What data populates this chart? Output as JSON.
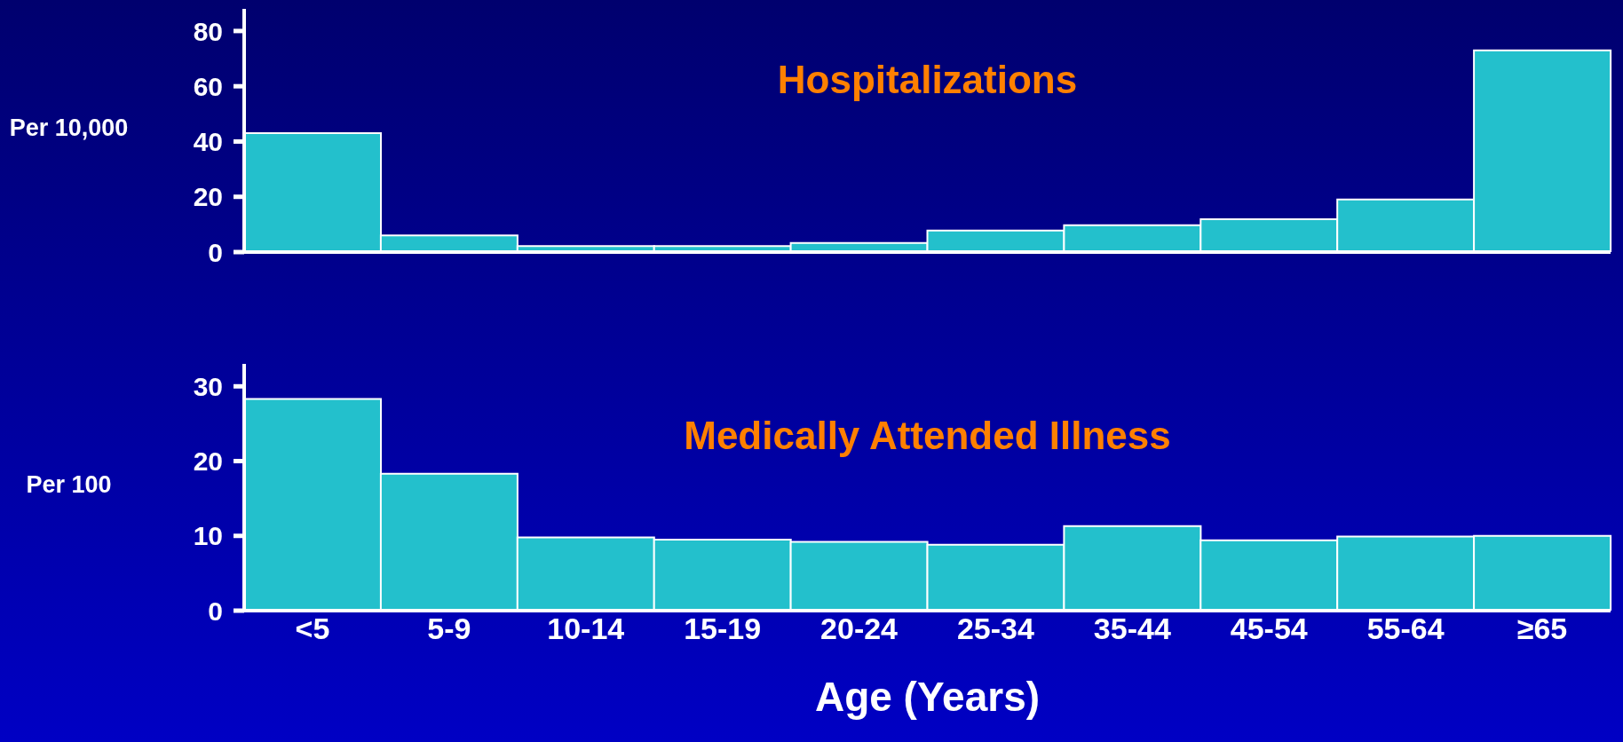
{
  "chart_data": [
    {
      "type": "bar",
      "title": "Hospitalizations",
      "ylabel": "Per 10,000",
      "categories": [
        null,
        null,
        null,
        null,
        null,
        null,
        null,
        null,
        null,
        null
      ],
      "series": [
        {
          "color": "#23c0cc",
          "values": [
            43,
            6,
            2.2,
            2.2,
            3.3,
            7.8,
            9.7,
            11.9,
            19,
            73
          ]
        }
      ],
      "ylim": [
        0,
        88
      ],
      "yticks": [
        0,
        20,
        40,
        60,
        80
      ],
      "grid": false,
      "legend": false,
      "tick_labels": "y"
    },
    {
      "type": "bar",
      "title": "Medically Attended Illness",
      "ylabel": "Per 100",
      "xlabel": "Age (Years)",
      "categories": [
        "<5",
        "5-9",
        "10-14",
        "15-19",
        "20-24",
        "25-34",
        "35-44",
        "45-54",
        "55-64",
        "≥65"
      ],
      "series": [
        {
          "color": "#23c0cc",
          "values": [
            28.3,
            18.3,
            9.8,
            9.5,
            9.2,
            8.8,
            11.3,
            9.4,
            9.9,
            10.0
          ]
        }
      ],
      "ylim": [
        0,
        33
      ],
      "yticks": [
        0,
        10,
        20,
        30
      ],
      "grid": false,
      "legend": false
    }
  ]
}
